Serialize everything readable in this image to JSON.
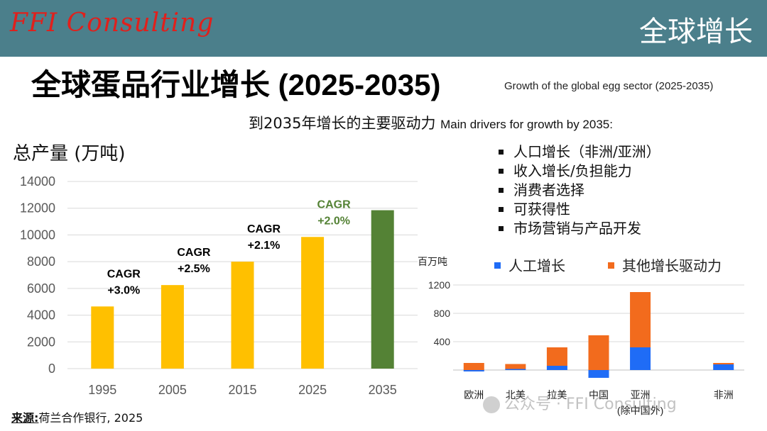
{
  "header": {
    "logo_text": "FFI Consulting",
    "section": "全球增长"
  },
  "title": {
    "main": "全球蛋品行业增长 (2025-2035)",
    "sub": "Growth of the global egg sector (2025-2035)"
  },
  "drivers": {
    "heading_cn": "到2035年增长的主要驱动力",
    "heading_en": "Main drivers for growth by 2035:",
    "items": [
      "人口增长（非洲/亚洲）",
      "收入增长/负担能力",
      "消费者选择",
      "可获得性",
      "市场营销与产品开发"
    ]
  },
  "chart_data": [
    {
      "type": "bar",
      "ylabel": "总产量 (万吨)",
      "categories": [
        "1995",
        "2005",
        "2015",
        "2025",
        "2035"
      ],
      "values": [
        4650,
        6250,
        8000,
        9850,
        11850
      ],
      "ylim": [
        0,
        14000
      ],
      "yticks": [
        0,
        2000,
        4000,
        6000,
        8000,
        10000,
        12000,
        14000
      ],
      "grid": true,
      "bar_colors": [
        "#ffc000",
        "#ffc000",
        "#ffc000",
        "#ffc000",
        "#548235"
      ],
      "annotations": [
        {
          "category": "2005",
          "lines": [
            "CAGR",
            "+3.0%"
          ],
          "color": "#000000"
        },
        {
          "category": "2015",
          "lines": [
            "CAGR",
            "+2.5%"
          ],
          "color": "#000000"
        },
        {
          "category": "2025",
          "lines": [
            "CAGR",
            "+2.1%"
          ],
          "color": "#000000"
        },
        {
          "category": "2035",
          "lines": [
            "CAGR",
            "+2.0%"
          ],
          "color": "#548235"
        }
      ]
    },
    {
      "type": "bar",
      "stacked": true,
      "ylabel": "百万吨",
      "categories": [
        "欧洲",
        "北美",
        "拉美",
        "中国",
        "亚洲",
        "",
        "非洲"
      ],
      "category_notes": [
        "",
        "",
        "",
        "",
        "(除中国外)",
        "",
        ""
      ],
      "series": [
        {
          "name": "人工增长",
          "color": "#1f6cf6",
          "values": [
            -20,
            15,
            60,
            -110,
            320,
            0,
            80
          ]
        },
        {
          "name": "其他增长驱动力",
          "color": "#f26b1d",
          "values": [
            100,
            70,
            260,
            490,
            780,
            0,
            20
          ]
        }
      ],
      "ylim": [
        -130,
        1300
      ],
      "yticks": [
        400,
        800,
        1200
      ],
      "grid": true,
      "legend": "top"
    }
  ],
  "source": {
    "label": "来源:",
    "text": "荷兰合作银行, 2025"
  },
  "watermark": {
    "text": "公众号 · FFI Consulting"
  }
}
